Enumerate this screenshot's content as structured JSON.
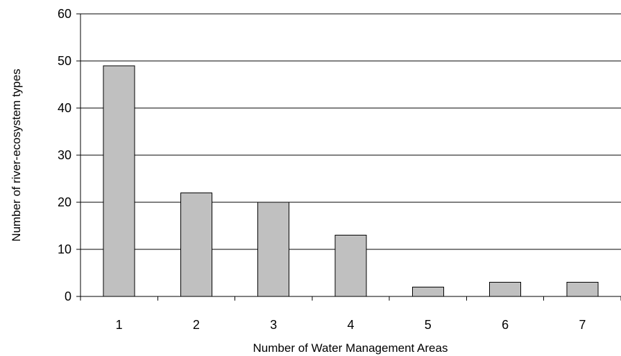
{
  "chart_data": {
    "type": "bar",
    "title": "",
    "xlabel": "Number of Water Management Areas",
    "ylabel": "Number of river-ecosystem types",
    "categories": [
      "1",
      "2",
      "3",
      "4",
      "5",
      "6",
      "7"
    ],
    "values": [
      49,
      22,
      20,
      13,
      2,
      3,
      3
    ],
    "ylim": [
      0,
      60
    ],
    "yticks": [
      "0",
      "10",
      "20",
      "30",
      "40",
      "50",
      "60"
    ],
    "grid": "horizontal",
    "legend": "none",
    "colors": {
      "bar_fill": "#c0c0c0",
      "bar_stroke": "#000000",
      "grid": "#000000",
      "axis": "#000000"
    }
  }
}
